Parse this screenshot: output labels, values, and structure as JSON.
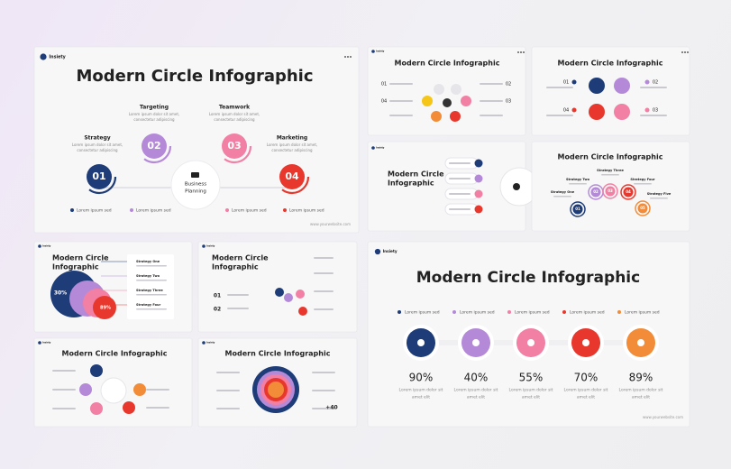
{
  "brand": "Insiety",
  "slides": [
    {
      "title": "Modern Circle Infographic",
      "steps": [
        {
          "number": "01",
          "label": "Strategy"
        },
        {
          "number": "02",
          "label": "Targeting"
        },
        {
          "number": "03",
          "label": "Teamwork"
        },
        {
          "number": "04",
          "label": "Marketing"
        }
      ],
      "description": [
        "Lorem ipsum dolor sit amet,",
        "consectetur adipiscing"
      ],
      "center": [
        "Business",
        "Planning"
      ],
      "legend": [
        "Lorem ipsum sed",
        "Lorem ipsum sed",
        "Lorem ipsum sed",
        "Lorem ipsum sed"
      ],
      "website": "www.yourwebsite.com"
    },
    {
      "title": "Modern Circle Infographic",
      "numbers": [
        "01",
        "02",
        "03",
        "04"
      ]
    },
    {
      "title": "Modern Circle Infographic",
      "numbers": [
        "01",
        "02",
        "03",
        "04"
      ]
    },
    {
      "title": [
        "Modern Circle",
        "Infographic"
      ]
    },
    {
      "title": "Modern Circle Infographic",
      "numbers": [
        "01",
        "02",
        "03",
        "04",
        "05"
      ],
      "labels": [
        "Strategy One",
        "Strategy Two",
        "Strategy Three",
        "Strategy Four",
        "Strategy Five"
      ]
    },
    {
      "title": [
        "Modern Circle",
        "Infographic"
      ],
      "percents": [
        "30%",
        "89%"
      ],
      "labels": [
        "Strategy One",
        "Strategy Two",
        "Strategy Three",
        "Strategy Four"
      ]
    },
    {
      "title": [
        "Modern Circle",
        "Infographic"
      ],
      "numbers": [
        "01",
        "02"
      ]
    },
    {
      "title": "Modern Circle Infographic"
    },
    {
      "title": "Modern Circle Infographic",
      "value": "+40"
    },
    {
      "title": "Modern Circle Infographic",
      "legend": [
        "Lorem ipsum sed",
        "Lorem ipsum sed",
        "Lorem ipsum sed",
        "Lorem ipsum sed",
        "Lorem ipsum sed"
      ],
      "percents": [
        "90%",
        "40%",
        "55%",
        "70%",
        "89%"
      ],
      "caption": [
        "Lorem ipsum dolor sit",
        "amet elit"
      ],
      "website": "www.yourwebsite.com"
    }
  ]
}
